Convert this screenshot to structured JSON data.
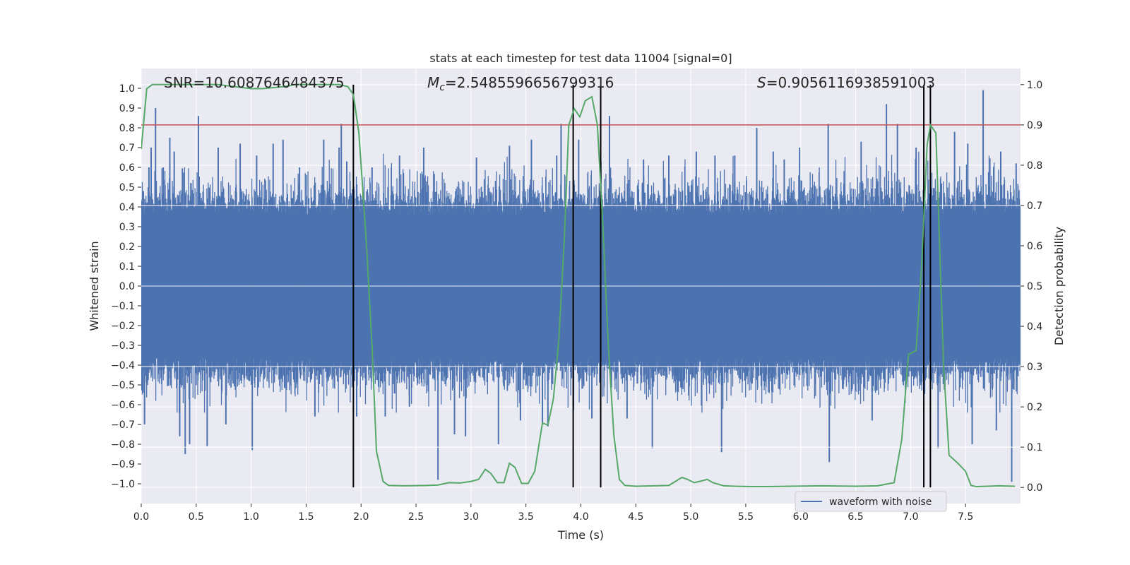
{
  "chart_data": {
    "type": "line",
    "title": "stats at each timestep for test data 11004 [signal=0]",
    "xlabel": "Time (s)",
    "ylabel": "Whitened strain",
    "y2label": "Detection probability",
    "xlim": [
      0.0,
      8.0
    ],
    "ylim": [
      -1.1,
      1.1
    ],
    "y2lim": [
      -0.04,
      1.04
    ],
    "xticks": [
      0.0,
      0.5,
      1.0,
      1.5,
      2.0,
      2.5,
      3.0,
      3.5,
      4.0,
      4.5,
      5.0,
      5.5,
      6.0,
      6.5,
      7.0,
      7.5
    ],
    "yticks": [
      -1.0,
      -0.9,
      -0.8,
      -0.7,
      -0.6,
      -0.5,
      -0.4,
      -0.3,
      -0.2,
      -0.1,
      0.0,
      0.1,
      0.2,
      0.3,
      0.4,
      0.5,
      0.6,
      0.7,
      0.8,
      0.9,
      1.0
    ],
    "y2ticks": [
      0.0,
      0.1,
      0.2,
      0.3,
      0.4,
      0.5,
      0.6,
      0.7,
      0.8,
      0.9,
      1.0
    ],
    "annotations": {
      "snr": "SNR=10.6087646484375",
      "mc_symbol": "M",
      "mc_sub": "c",
      "mc_value": "=2.5485596656799316",
      "s_symbol": "S",
      "s_value": "=0.9056116938591003"
    },
    "legend": {
      "label": "waveform with noise",
      "placement": "lower-right"
    },
    "threshold": {
      "value": 0.9,
      "axis": "right",
      "color": "#c44e52"
    },
    "vlines_x": [
      1.93,
      3.93,
      4.18,
      7.12,
      7.18
    ],
    "colors": {
      "waveform": "#4c72b0",
      "probability": "#55a868",
      "vline": "#000000",
      "background": "#eaeaf2"
    },
    "waveform_noise_seed": 11004,
    "waveform_spikes": [
      {
        "x": 0.03,
        "y": -0.7
      },
      {
        "x": 0.07,
        "y": 0.6
      },
      {
        "x": 0.09,
        "y": 0.7
      },
      {
        "x": 0.13,
        "y": 0.9
      },
      {
        "x": 0.2,
        "y": 0.6
      },
      {
        "x": 0.26,
        "y": 0.75
      },
      {
        "x": 0.3,
        "y": 0.68
      },
      {
        "x": 0.35,
        "y": -0.76
      },
      {
        "x": 0.4,
        "y": -0.85
      },
      {
        "x": 0.44,
        "y": -0.8
      },
      {
        "x": 0.52,
        "y": 0.86
      },
      {
        "x": 0.6,
        "y": -0.81
      },
      {
        "x": 0.7,
        "y": 0.7
      },
      {
        "x": 0.77,
        "y": -0.7
      },
      {
        "x": 0.9,
        "y": 0.72
      },
      {
        "x": 1.01,
        "y": -0.83
      },
      {
        "x": 1.05,
        "y": 0.66
      },
      {
        "x": 1.2,
        "y": 0.72
      },
      {
        "x": 1.29,
        "y": 0.74
      },
      {
        "x": 1.44,
        "y": 0.6
      },
      {
        "x": 1.58,
        "y": -0.66
      },
      {
        "x": 1.66,
        "y": 0.74
      },
      {
        "x": 1.8,
        "y": 0.7
      },
      {
        "x": 1.82,
        "y": 0.82
      },
      {
        "x": 1.87,
        "y": 0.63
      },
      {
        "x": 1.96,
        "y": -0.66
      },
      {
        "x": 2.1,
        "y": 0.6
      },
      {
        "x": 2.22,
        "y": -0.66
      },
      {
        "x": 2.35,
        "y": 0.66
      },
      {
        "x": 2.44,
        "y": -0.61
      },
      {
        "x": 2.57,
        "y": 0.7
      },
      {
        "x": 2.7,
        "y": -0.98
      },
      {
        "x": 2.85,
        "y": -0.75
      },
      {
        "x": 2.95,
        "y": -0.76
      },
      {
        "x": 3.05,
        "y": 0.65
      },
      {
        "x": 3.25,
        "y": -0.8
      },
      {
        "x": 3.35,
        "y": 0.71
      },
      {
        "x": 3.45,
        "y": -0.68
      },
      {
        "x": 3.55,
        "y": 0.74
      },
      {
        "x": 3.65,
        "y": -0.7
      },
      {
        "x": 3.7,
        "y": -0.71
      },
      {
        "x": 3.78,
        "y": 0.66
      },
      {
        "x": 3.82,
        "y": 0.82
      },
      {
        "x": 3.98,
        "y": 0.74
      },
      {
        "x": 4.1,
        "y": -0.67
      },
      {
        "x": 4.26,
        "y": 0.86
      },
      {
        "x": 4.42,
        "y": -0.67
      },
      {
        "x": 4.57,
        "y": 0.64
      },
      {
        "x": 4.65,
        "y": -0.82
      },
      {
        "x": 4.8,
        "y": 0.66
      },
      {
        "x": 5.05,
        "y": 0.68
      },
      {
        "x": 5.22,
        "y": 0.66
      },
      {
        "x": 5.28,
        "y": -0.84
      },
      {
        "x": 5.4,
        "y": 0.66
      },
      {
        "x": 5.6,
        "y": 0.8
      },
      {
        "x": 5.75,
        "y": 0.68
      },
      {
        "x": 5.85,
        "y": 0.64
      },
      {
        "x": 5.99,
        "y": 0.7
      },
      {
        "x": 6.25,
        "y": 0.82
      },
      {
        "x": 6.26,
        "y": -0.89
      },
      {
        "x": 6.55,
        "y": 0.73
      },
      {
        "x": 6.65,
        "y": -0.68
      },
      {
        "x": 6.78,
        "y": 0.92
      },
      {
        "x": 6.88,
        "y": 0.82
      },
      {
        "x": 7.05,
        "y": 0.7
      },
      {
        "x": 7.25,
        "y": -0.82
      },
      {
        "x": 7.4,
        "y": 0.78
      },
      {
        "x": 7.52,
        "y": 0.72
      },
      {
        "x": 7.56,
        "y": -0.8
      },
      {
        "x": 7.66,
        "y": 0.99
      },
      {
        "x": 7.78,
        "y": -0.73
      },
      {
        "x": 7.82,
        "y": 0.68
      },
      {
        "x": 7.92,
        "y": -0.99
      },
      {
        "x": 7.96,
        "y": 0.62
      }
    ],
    "series": [
      {
        "name": "detection probability",
        "axis": "right",
        "points": [
          [
            0.0,
            0.84
          ],
          [
            0.05,
            0.99
          ],
          [
            0.1,
            1.0
          ],
          [
            0.2,
            1.0
          ],
          [
            0.35,
            1.0
          ],
          [
            0.55,
            1.0
          ],
          [
            0.7,
            1.0
          ],
          [
            0.85,
            0.995
          ],
          [
            1.0,
            0.99
          ],
          [
            1.1,
            0.99
          ],
          [
            1.3,
            0.995
          ],
          [
            1.4,
            1.0
          ],
          [
            1.6,
            1.0
          ],
          [
            1.8,
            1.0
          ],
          [
            1.88,
            0.995
          ],
          [
            1.93,
            0.975
          ],
          [
            1.98,
            0.88
          ],
          [
            2.05,
            0.6
          ],
          [
            2.1,
            0.35
          ],
          [
            2.14,
            0.09
          ],
          [
            2.2,
            0.015
          ],
          [
            2.25,
            0.005
          ],
          [
            2.4,
            0.004
          ],
          [
            2.6,
            0.005
          ],
          [
            2.7,
            0.006
          ],
          [
            2.8,
            0.012
          ],
          [
            2.9,
            0.011
          ],
          [
            3.0,
            0.015
          ],
          [
            3.07,
            0.02
          ],
          [
            3.13,
            0.045
          ],
          [
            3.18,
            0.035
          ],
          [
            3.24,
            0.012
          ],
          [
            3.3,
            0.012
          ],
          [
            3.35,
            0.06
          ],
          [
            3.4,
            0.05
          ],
          [
            3.46,
            0.01
          ],
          [
            3.52,
            0.01
          ],
          [
            3.58,
            0.04
          ],
          [
            3.65,
            0.16
          ],
          [
            3.7,
            0.155
          ],
          [
            3.75,
            0.22
          ],
          [
            3.8,
            0.37
          ],
          [
            3.85,
            0.62
          ],
          [
            3.89,
            0.9
          ],
          [
            3.94,
            0.94
          ],
          [
            3.99,
            0.92
          ],
          [
            4.04,
            0.96
          ],
          [
            4.1,
            0.97
          ],
          [
            4.15,
            0.9
          ],
          [
            4.2,
            0.65
          ],
          [
            4.25,
            0.35
          ],
          [
            4.3,
            0.13
          ],
          [
            4.35,
            0.02
          ],
          [
            4.4,
            0.005
          ],
          [
            4.5,
            0.003
          ],
          [
            4.8,
            0.005
          ],
          [
            4.86,
            0.015
          ],
          [
            4.92,
            0.025
          ],
          [
            4.97,
            0.02
          ],
          [
            5.03,
            0.012
          ],
          [
            5.08,
            0.015
          ],
          [
            5.15,
            0.02
          ],
          [
            5.2,
            0.012
          ],
          [
            5.3,
            0.004
          ],
          [
            5.4,
            0.003
          ],
          [
            5.55,
            0.002
          ],
          [
            5.7,
            0.002
          ],
          [
            5.9,
            0.003
          ],
          [
            6.2,
            0.004
          ],
          [
            6.5,
            0.003
          ],
          [
            6.7,
            0.004
          ],
          [
            6.85,
            0.012
          ],
          [
            6.92,
            0.12
          ],
          [
            6.98,
            0.33
          ],
          [
            7.05,
            0.34
          ],
          [
            7.1,
            0.55
          ],
          [
            7.15,
            0.85
          ],
          [
            7.18,
            0.9
          ],
          [
            7.23,
            0.88
          ],
          [
            7.3,
            0.3
          ],
          [
            7.35,
            0.08
          ],
          [
            7.43,
            0.06
          ],
          [
            7.5,
            0.04
          ],
          [
            7.55,
            0.005
          ],
          [
            7.6,
            0.002
          ],
          [
            7.7,
            0.003
          ],
          [
            7.8,
            0.004
          ],
          [
            7.95,
            0.003
          ]
        ]
      }
    ]
  }
}
